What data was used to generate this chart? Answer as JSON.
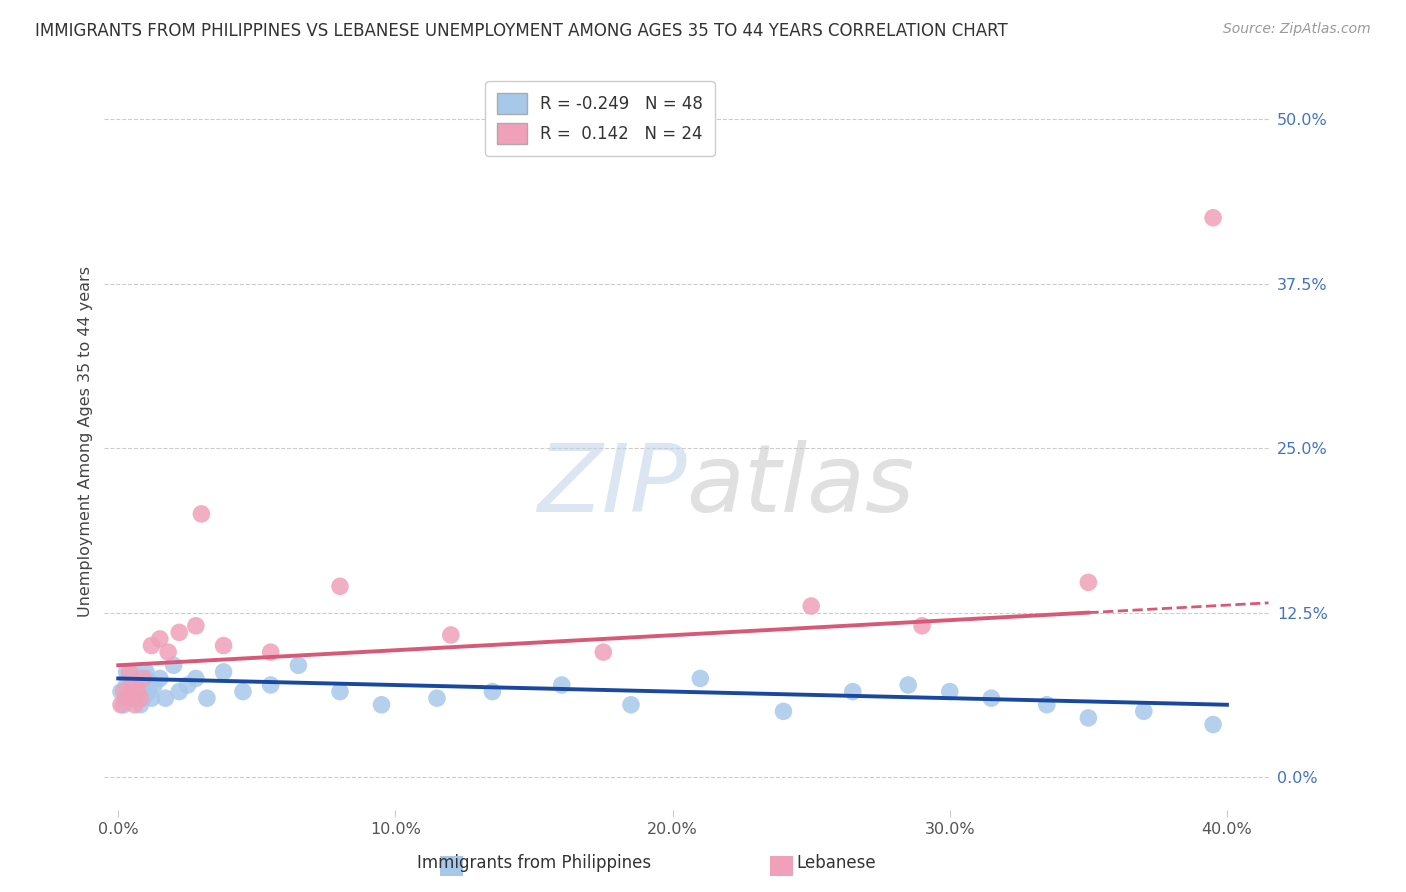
{
  "title": "IMMIGRANTS FROM PHILIPPINES VS LEBANESE UNEMPLOYMENT AMONG AGES 35 TO 44 YEARS CORRELATION CHART",
  "source": "Source: ZipAtlas.com",
  "xlabel_ticks": [
    "0.0%",
    "10.0%",
    "20.0%",
    "30.0%",
    "40.0%"
  ],
  "xlabel_tick_vals": [
    0.0,
    0.1,
    0.2,
    0.3,
    0.4
  ],
  "ylabel_ticks": [
    "0.0%",
    "12.5%",
    "25.0%",
    "37.5%",
    "50.0%"
  ],
  "ylabel_tick_vals": [
    0.0,
    0.125,
    0.25,
    0.375,
    0.5
  ],
  "xlim": [
    -0.005,
    0.415
  ],
  "ylim": [
    -0.025,
    0.535
  ],
  "legend_labels": [
    "Immigrants from Philippines",
    "Lebanese"
  ],
  "r_philippines": -0.249,
  "n_philippines": 48,
  "r_lebanese": 0.142,
  "n_lebanese": 24,
  "philippines_color": "#a8c8ea",
  "lebanese_color": "#f0a0b8",
  "philippines_line_color": "#1848a0",
  "lebanese_line_color": "#d85878",
  "watermark_color": "#c8d8f0",
  "philippines_scatter_x": [
    0.001,
    0.002,
    0.003,
    0.003,
    0.004,
    0.004,
    0.005,
    0.005,
    0.006,
    0.006,
    0.007,
    0.007,
    0.008,
    0.008,
    0.009,
    0.009,
    0.01,
    0.01,
    0.011,
    0.012,
    0.013,
    0.015,
    0.017,
    0.02,
    0.022,
    0.025,
    0.028,
    0.032,
    0.038,
    0.045,
    0.055,
    0.065,
    0.08,
    0.095,
    0.115,
    0.135,
    0.16,
    0.185,
    0.21,
    0.24,
    0.265,
    0.285,
    0.3,
    0.315,
    0.335,
    0.35,
    0.37,
    0.395
  ],
  "philippines_scatter_y": [
    0.065,
    0.055,
    0.07,
    0.08,
    0.06,
    0.075,
    0.065,
    0.08,
    0.07,
    0.06,
    0.075,
    0.065,
    0.055,
    0.07,
    0.065,
    0.06,
    0.075,
    0.08,
    0.065,
    0.06,
    0.07,
    0.075,
    0.06,
    0.085,
    0.065,
    0.07,
    0.075,
    0.06,
    0.08,
    0.065,
    0.07,
    0.085,
    0.065,
    0.055,
    0.06,
    0.065,
    0.07,
    0.055,
    0.075,
    0.05,
    0.065,
    0.07,
    0.065,
    0.06,
    0.055,
    0.045,
    0.05,
    0.04
  ],
  "lebanese_scatter_x": [
    0.001,
    0.002,
    0.003,
    0.004,
    0.005,
    0.006,
    0.007,
    0.008,
    0.009,
    0.012,
    0.015,
    0.018,
    0.022,
    0.028,
    0.038,
    0.055,
    0.08,
    0.12,
    0.175,
    0.25,
    0.29,
    0.35,
    0.395,
    0.03
  ],
  "lebanese_scatter_y": [
    0.055,
    0.065,
    0.06,
    0.08,
    0.07,
    0.055,
    0.065,
    0.06,
    0.075,
    0.1,
    0.105,
    0.095,
    0.11,
    0.115,
    0.1,
    0.095,
    0.145,
    0.108,
    0.095,
    0.13,
    0.115,
    0.148,
    0.425,
    0.2
  ],
  "lb_line_xstart": 0.0,
  "lb_line_xend_solid": 0.35,
  "lb_line_xend_dash": 0.415
}
